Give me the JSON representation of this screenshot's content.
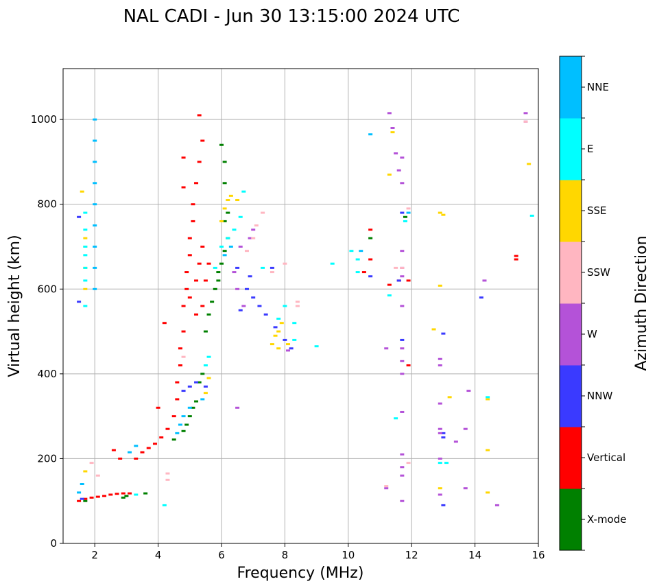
{
  "chart_data": {
    "type": "scatter",
    "title": "NAL CADI - Jun 30 13:15:00 2024 UTC",
    "xlabel": "Frequency (MHz)",
    "ylabel": "Virtual height (km)",
    "xlim": [
      1,
      16
    ],
    "ylim": [
      0,
      1120
    ],
    "xticks": [
      2,
      4,
      6,
      8,
      10,
      12,
      14,
      16
    ],
    "yticks": [
      0,
      200,
      400,
      600,
      800,
      1000
    ],
    "grid": true,
    "colorbar": {
      "label": "Azimuth Direction",
      "entries": [
        {
          "name": "X-mode",
          "color": "#008000"
        },
        {
          "name": "Vertical",
          "color": "#ff0000"
        },
        {
          "name": "NNW",
          "color": "#3a3aff"
        },
        {
          "name": "W",
          "color": "#b452d8"
        },
        {
          "name": "SSW",
          "color": "#ffb6c1"
        },
        {
          "name": "SSE",
          "color": "#ffd700"
        },
        {
          "name": "E",
          "color": "#00ffff"
        },
        {
          "name": "NNE",
          "color": "#00bfff"
        }
      ]
    },
    "series": [
      {
        "name": "X-mode",
        "points": [
          [
            3.6,
            118
          ],
          [
            4.5,
            245
          ],
          [
            4.8,
            265
          ],
          [
            4.9,
            280
          ],
          [
            5.0,
            300
          ],
          [
            5.1,
            320
          ],
          [
            5.2,
            335
          ],
          [
            5.3,
            380
          ],
          [
            5.4,
            400
          ],
          [
            5.5,
            500
          ],
          [
            5.6,
            540
          ],
          [
            5.7,
            570
          ],
          [
            5.8,
            600
          ],
          [
            5.9,
            640
          ],
          [
            6.0,
            660
          ],
          [
            6.1,
            690
          ],
          [
            6.2,
            720
          ],
          [
            6.2,
            780
          ],
          [
            6.1,
            850
          ],
          [
            6.1,
            900
          ],
          [
            6.0,
            940
          ],
          [
            5.9,
            620
          ],
          [
            6.0,
            700
          ],
          [
            6.1,
            760
          ],
          [
            2.9,
            108
          ],
          [
            3.0,
            112
          ],
          [
            1.7,
            100
          ],
          [
            10.7,
            720
          ],
          [
            11.8,
            770
          ]
        ]
      },
      {
        "name": "Vertical",
        "points": [
          [
            1.5,
            100
          ],
          [
            1.7,
            105
          ],
          [
            1.9,
            108
          ],
          [
            2.1,
            110
          ],
          [
            2.3,
            112
          ],
          [
            2.5,
            115
          ],
          [
            2.7,
            117
          ],
          [
            2.9,
            118
          ],
          [
            3.1,
            118
          ],
          [
            3.3,
            200
          ],
          [
            3.5,
            215
          ],
          [
            3.7,
            225
          ],
          [
            3.9,
            235
          ],
          [
            4.1,
            250
          ],
          [
            4.3,
            270
          ],
          [
            4.5,
            300
          ],
          [
            4.6,
            340
          ],
          [
            4.6,
            380
          ],
          [
            4.7,
            420
          ],
          [
            4.7,
            460
          ],
          [
            4.8,
            500
          ],
          [
            4.8,
            560
          ],
          [
            4.9,
            600
          ],
          [
            4.9,
            640
          ],
          [
            5.0,
            680
          ],
          [
            5.0,
            720
          ],
          [
            5.1,
            760
          ],
          [
            5.1,
            800
          ],
          [
            5.2,
            850
          ],
          [
            5.3,
            900
          ],
          [
            5.4,
            950
          ],
          [
            5.3,
            1010
          ],
          [
            5.2,
            620
          ],
          [
            5.3,
            660
          ],
          [
            5.4,
            700
          ],
          [
            5.5,
            620
          ],
          [
            5.6,
            660
          ],
          [
            5.0,
            580
          ],
          [
            5.2,
            540
          ],
          [
            5.4,
            560
          ],
          [
            4.8,
            840
          ],
          [
            4.8,
            910
          ],
          [
            4.2,
            520
          ],
          [
            4.0,
            320
          ],
          [
            10.5,
            640
          ],
          [
            10.7,
            670
          ],
          [
            10.7,
            740
          ],
          [
            11.3,
            610
          ],
          [
            11.6,
            620
          ],
          [
            11.9,
            620
          ],
          [
            15.3,
            670
          ],
          [
            15.3,
            678
          ],
          [
            11.9,
            420
          ],
          [
            2.8,
            200
          ],
          [
            2.6,
            220
          ]
        ]
      },
      {
        "name": "NNW",
        "points": [
          [
            1.5,
            570
          ],
          [
            1.5,
            770
          ],
          [
            1.6,
            105
          ],
          [
            4.8,
            360
          ],
          [
            5.0,
            370
          ],
          [
            5.2,
            380
          ],
          [
            5.5,
            370
          ],
          [
            6.6,
            550
          ],
          [
            6.8,
            600
          ],
          [
            7.0,
            580
          ],
          [
            7.2,
            560
          ],
          [
            7.4,
            540
          ],
          [
            7.7,
            510
          ],
          [
            8.0,
            480
          ],
          [
            8.2,
            460
          ],
          [
            10.7,
            630
          ],
          [
            11.7,
            480
          ],
          [
            11.7,
            780
          ],
          [
            13.0,
            90
          ],
          [
            13.0,
            250
          ],
          [
            13.0,
            260
          ],
          [
            13.0,
            495
          ],
          [
            14.2,
            580
          ],
          [
            11.6,
            620
          ],
          [
            6.5,
            650
          ],
          [
            6.9,
            630
          ],
          [
            7.6,
            650
          ]
        ]
      },
      {
        "name": "W",
        "points": [
          [
            6.4,
            640
          ],
          [
            6.5,
            600
          ],
          [
            6.6,
            700
          ],
          [
            6.7,
            560
          ],
          [
            6.9,
            720
          ],
          [
            7.0,
            740
          ],
          [
            6.5,
            320
          ],
          [
            8.1,
            455
          ],
          [
            11.2,
            130
          ],
          [
            11.2,
            460
          ],
          [
            11.7,
            100
          ],
          [
            11.7,
            160
          ],
          [
            11.7,
            180
          ],
          [
            11.7,
            210
          ],
          [
            11.7,
            310
          ],
          [
            11.7,
            400
          ],
          [
            11.7,
            430
          ],
          [
            11.7,
            460
          ],
          [
            11.7,
            560
          ],
          [
            11.7,
            630
          ],
          [
            11.7,
            650
          ],
          [
            11.7,
            690
          ],
          [
            11.7,
            850
          ],
          [
            11.7,
            910
          ],
          [
            11.5,
            920
          ],
          [
            11.4,
            980
          ],
          [
            11.6,
            880
          ],
          [
            12.9,
            200
          ],
          [
            12.9,
            260
          ],
          [
            12.9,
            270
          ],
          [
            12.9,
            330
          ],
          [
            12.9,
            420
          ],
          [
            12.9,
            435
          ],
          [
            12.9,
            115
          ],
          [
            13.4,
            240
          ],
          [
            13.7,
            130
          ],
          [
            13.7,
            270
          ],
          [
            13.8,
            360
          ],
          [
            14.7,
            90
          ],
          [
            14.3,
            620
          ],
          [
            15.6,
            1015
          ],
          [
            15.6,
            995
          ],
          [
            11.3,
            1015
          ]
        ]
      },
      {
        "name": "SSW",
        "points": [
          [
            6.8,
            690
          ],
          [
            7.0,
            720
          ],
          [
            7.1,
            750
          ],
          [
            7.3,
            780
          ],
          [
            7.6,
            640
          ],
          [
            8.0,
            660
          ],
          [
            8.4,
            560
          ],
          [
            8.4,
            570
          ],
          [
            4.8,
            440
          ],
          [
            11.5,
            650
          ],
          [
            11.7,
            650
          ],
          [
            11.9,
            790
          ],
          [
            11.9,
            190
          ],
          [
            11.2,
            135
          ],
          [
            15.6,
            995
          ],
          [
            2.1,
            160
          ],
          [
            1.9,
            190
          ],
          [
            4.3,
            150
          ],
          [
            4.3,
            165
          ]
        ]
      },
      {
        "name": "SSE",
        "points": [
          [
            1.7,
            600
          ],
          [
            1.7,
            650
          ],
          [
            1.7,
            700
          ],
          [
            1.7,
            720
          ],
          [
            6.0,
            760
          ],
          [
            6.1,
            790
          ],
          [
            6.2,
            810
          ],
          [
            6.3,
            820
          ],
          [
            6.5,
            810
          ],
          [
            7.6,
            470
          ],
          [
            7.7,
            490
          ],
          [
            7.8,
            500
          ],
          [
            7.9,
            520
          ],
          [
            8.1,
            470
          ],
          [
            7.8,
            460
          ],
          [
            5.5,
            355
          ],
          [
            5.6,
            390
          ],
          [
            12.7,
            505
          ],
          [
            12.9,
            780
          ],
          [
            13.0,
            775
          ],
          [
            12.9,
            608
          ],
          [
            12.9,
            130
          ],
          [
            13.2,
            345
          ],
          [
            14.4,
            340
          ],
          [
            14.4,
            220
          ],
          [
            14.4,
            120
          ],
          [
            15.7,
            895
          ],
          [
            11.3,
            870
          ],
          [
            11.4,
            970
          ],
          [
            1.6,
            830
          ],
          [
            1.7,
            170
          ]
        ]
      },
      {
        "name": "E",
        "points": [
          [
            1.7,
            620
          ],
          [
            1.7,
            650
          ],
          [
            1.7,
            680
          ],
          [
            1.7,
            700
          ],
          [
            1.7,
            740
          ],
          [
            1.7,
            780
          ],
          [
            1.7,
            560
          ],
          [
            5.8,
            650
          ],
          [
            6.0,
            700
          ],
          [
            6.2,
            720
          ],
          [
            6.4,
            740
          ],
          [
            6.6,
            770
          ],
          [
            6.7,
            830
          ],
          [
            7.3,
            650
          ],
          [
            7.8,
            530
          ],
          [
            8.0,
            560
          ],
          [
            8.3,
            520
          ],
          [
            8.3,
            480
          ],
          [
            9.0,
            465
          ],
          [
            9.5,
            660
          ],
          [
            10.1,
            690
          ],
          [
            10.3,
            670
          ],
          [
            10.3,
            640
          ],
          [
            11.5,
            295
          ],
          [
            11.3,
            585
          ],
          [
            11.8,
            760
          ],
          [
            12.9,
            190
          ],
          [
            13.1,
            190
          ],
          [
            14.4,
            345
          ],
          [
            15.8,
            773
          ],
          [
            4.2,
            90
          ],
          [
            3.3,
            115
          ],
          [
            5.5,
            420
          ],
          [
            5.6,
            440
          ]
        ]
      },
      {
        "name": "NNE",
        "points": [
          [
            2.0,
            600
          ],
          [
            2.0,
            650
          ],
          [
            2.0,
            700
          ],
          [
            2.0,
            750
          ],
          [
            2.0,
            800
          ],
          [
            2.0,
            850
          ],
          [
            2.0,
            900
          ],
          [
            2.0,
            950
          ],
          [
            2.0,
            1000
          ],
          [
            1.5,
            120
          ],
          [
            1.6,
            140
          ],
          [
            4.6,
            260
          ],
          [
            4.7,
            280
          ],
          [
            4.8,
            300
          ],
          [
            5.0,
            320
          ],
          [
            5.4,
            340
          ],
          [
            3.3,
            230
          ],
          [
            3.1,
            215
          ],
          [
            10.7,
            965
          ],
          [
            10.4,
            690
          ],
          [
            11.9,
            780
          ],
          [
            6.1,
            680
          ],
          [
            6.3,
            700
          ]
        ]
      }
    ]
  }
}
